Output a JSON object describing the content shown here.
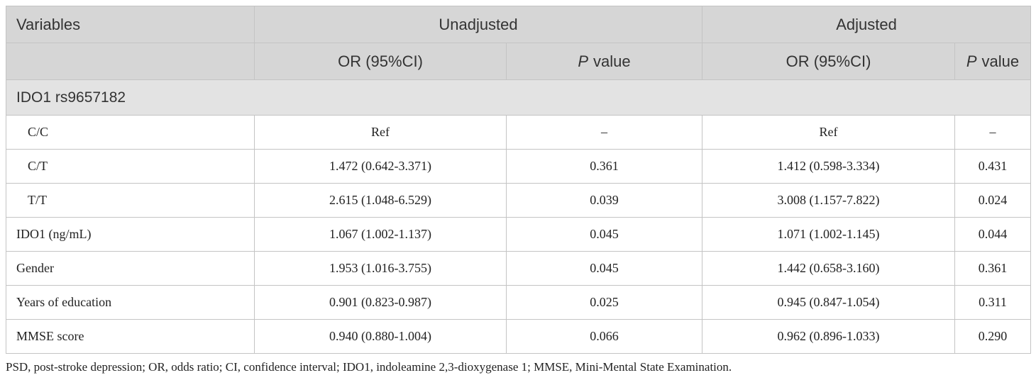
{
  "table": {
    "header": {
      "row1": [
        "Variables",
        "Unadjusted",
        "Adjusted"
      ],
      "row2": [
        "OR (95%CI)",
        [
          "P",
          "value"
        ],
        "OR (95%CI)",
        [
          "P",
          "value"
        ]
      ]
    },
    "section": {
      "label": "IDO1 rs9657182",
      "rows": [
        [
          "C/C",
          "Ref",
          "–",
          "Ref",
          "–"
        ],
        [
          "C/T",
          "1.472 (0.642-3.371)",
          "0.361",
          "1.412 (0.598-3.334)",
          "0.431"
        ],
        [
          "T/T",
          "2.615 (1.048-6.529)",
          "0.039",
          "3.008 (1.157-7.822)",
          "0.024"
        ]
      ]
    },
    "rows": [
      [
        "IDO1 (ng/mL)",
        "1.067 (1.002-1.137)",
        "0.045",
        "1.071 (1.002-1.145)",
        "0.044"
      ],
      [
        "Gender",
        "1.953 (1.016-3.755)",
        "0.045",
        "1.442 (0.658-3.160)",
        "0.361"
      ],
      [
        "Years of education",
        "0.901 (0.823-0.987)",
        "0.025",
        "0.945 (0.847-1.054)",
        "0.311"
      ],
      [
        "MMSE score",
        "0.940 (0.880-1.004)",
        "0.066",
        "0.962 (0.896-1.033)",
        "0.290"
      ]
    ],
    "footnote": "PSD, post-stroke depression; OR, odds ratio; CI, confidence interval; IDO1, indoleamine 2,3-dioxygenase 1; MMSE, Mini-Mental State Examination."
  }
}
